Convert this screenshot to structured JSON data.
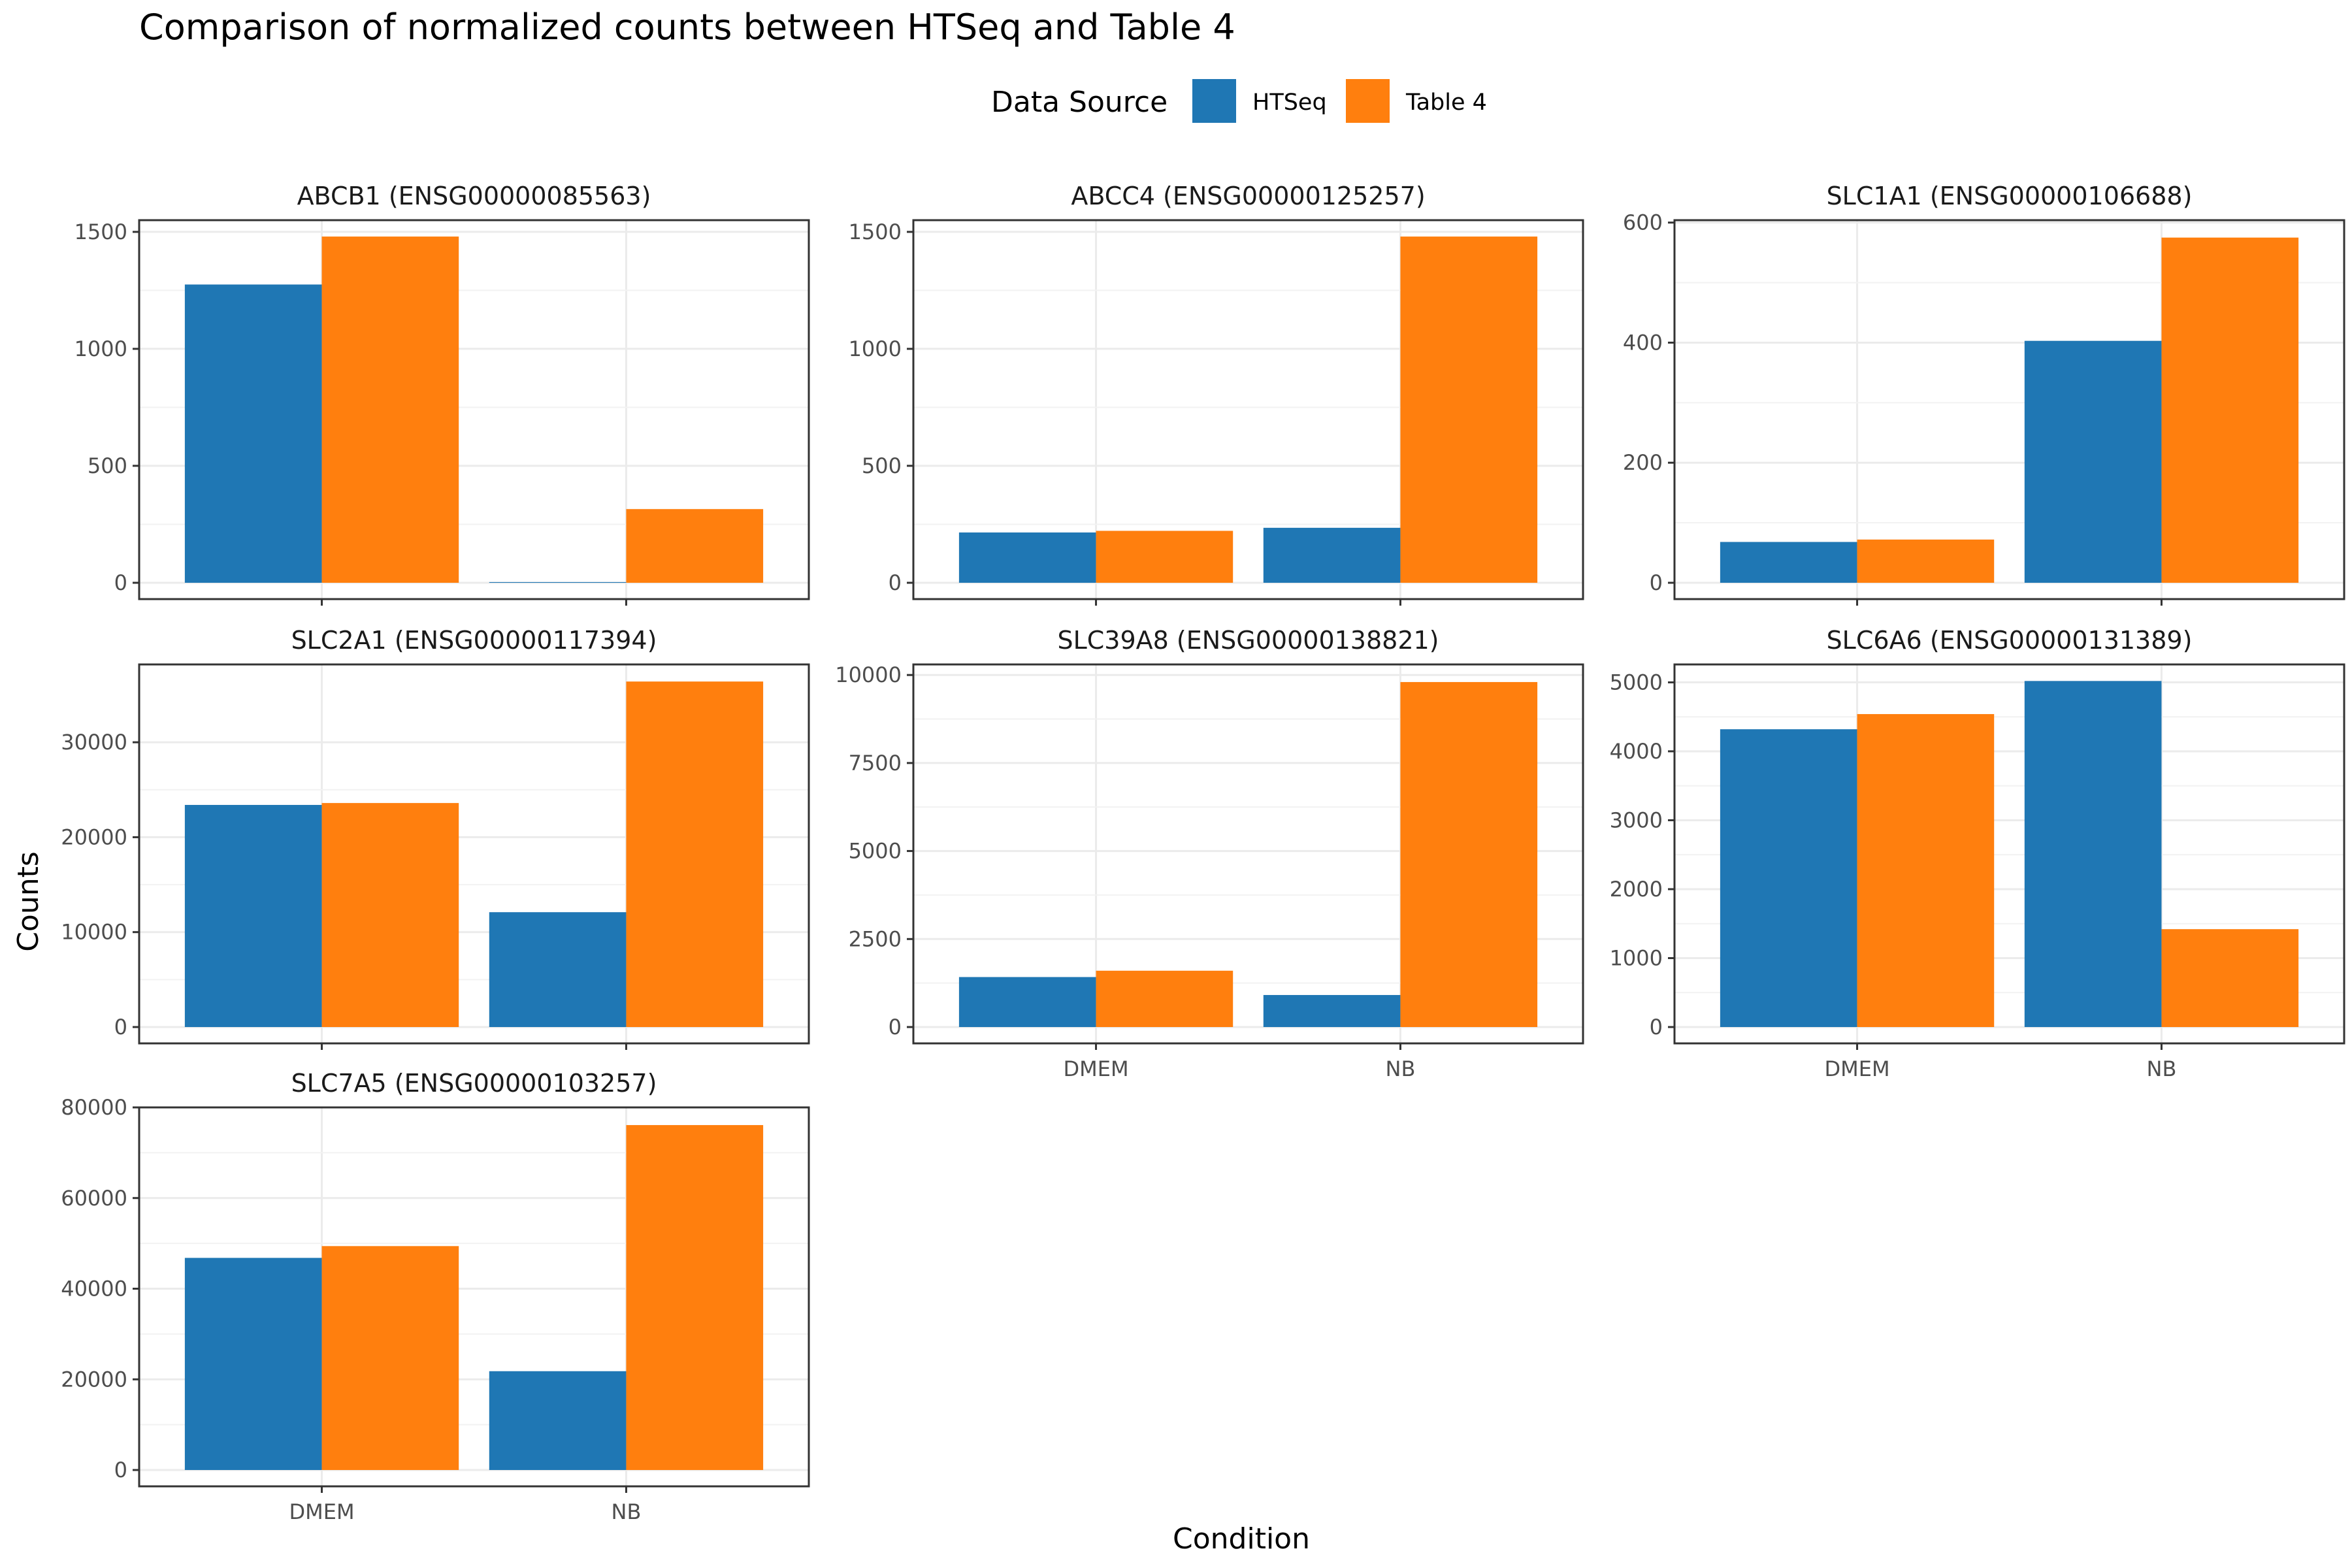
{
  "title": "Comparison of normalized counts between HTSeq and Table 4",
  "legend": {
    "title": "Data Source",
    "items": [
      {
        "label": "HTSeq",
        "color": "#1f77b4"
      },
      {
        "label": "Table 4",
        "color": "#ff7f0e"
      }
    ],
    "position": "top"
  },
  "axes": {
    "xlabel": "Condition",
    "ylabel": "Counts"
  },
  "chart_data": {
    "type": "bar",
    "layout": "facet-grid-3-columns",
    "categories": [
      "DMEM",
      "NB"
    ],
    "series_names": [
      "HTSeq",
      "Table 4"
    ],
    "series_colors": [
      "#1f77b4",
      "#ff7f0e"
    ],
    "grid": true,
    "facets": [
      {
        "title": "ABCB1 (ENSG00000085563)",
        "ylim": [
          0,
          1550
        ],
        "yticks": [
          0,
          500,
          1000,
          1500
        ],
        "ytick_labels": [
          "0",
          "500",
          "1000",
          "1500"
        ],
        "series": [
          {
            "name": "HTSeq",
            "values": [
              1275,
              3
            ]
          },
          {
            "name": "Table 4",
            "values": [
              1480,
              315
            ]
          }
        ],
        "show_x_labels": false
      },
      {
        "title": "ABCC4 (ENSG00000125257)",
        "ylim": [
          0,
          1550
        ],
        "yticks": [
          0,
          500,
          1000,
          1500
        ],
        "ytick_labels": [
          "0",
          "500",
          "1000",
          "1500"
        ],
        "series": [
          {
            "name": "HTSeq",
            "values": [
              215,
              235
            ]
          },
          {
            "name": "Table 4",
            "values": [
              222,
              1480
            ]
          }
        ],
        "show_x_labels": false
      },
      {
        "title": "SLC1A1 (ENSG00000106688)",
        "ylim": [
          0,
          604
        ],
        "yticks": [
          0,
          200,
          400,
          600
        ],
        "ytick_labels": [
          "0",
          "200",
          "400",
          "600"
        ],
        "series": [
          {
            "name": "HTSeq",
            "values": [
              68,
              403
            ]
          },
          {
            "name": "Table 4",
            "values": [
              72,
              575
            ]
          }
        ],
        "show_x_labels": false
      },
      {
        "title": "SLC2A1 (ENSG00000117394)",
        "ylim": [
          0,
          38200
        ],
        "yticks": [
          0,
          10000,
          20000,
          30000
        ],
        "ytick_labels": [
          "0",
          "10000",
          "20000",
          "30000"
        ],
        "series": [
          {
            "name": "HTSeq",
            "values": [
              23400,
              12100
            ]
          },
          {
            "name": "Table 4",
            "values": [
              23600,
              36400
            ]
          }
        ],
        "show_x_labels": false
      },
      {
        "title": "SLC39A8 (ENSG00000138821)",
        "ylim": [
          0,
          10300
        ],
        "yticks": [
          0,
          2500,
          5000,
          7500,
          10000
        ],
        "ytick_labels": [
          "0",
          "2500",
          "5000",
          "7500",
          "10000"
        ],
        "series": [
          {
            "name": "HTSeq",
            "values": [
              1420,
              910
            ]
          },
          {
            "name": "Table 4",
            "values": [
              1600,
              9800
            ]
          }
        ],
        "show_x_labels": true
      },
      {
        "title": "SLC6A6 (ENSG00000131389)",
        "ylim": [
          0,
          5260
        ],
        "yticks": [
          0,
          1000,
          2000,
          3000,
          4000,
          5000
        ],
        "ytick_labels": [
          "0",
          "1000",
          "2000",
          "3000",
          "4000",
          "5000"
        ],
        "series": [
          {
            "name": "HTSeq",
            "values": [
              4320,
              5020
            ]
          },
          {
            "name": "Table 4",
            "values": [
              4540,
              1420
            ]
          }
        ],
        "show_x_labels": true
      },
      {
        "title": "SLC7A5 (ENSG00000103257)",
        "ylim": [
          0,
          80000
        ],
        "yticks": [
          0,
          20000,
          40000,
          60000,
          80000
        ],
        "ytick_labels": [
          "0",
          "20000",
          "40000",
          "60000",
          "80000"
        ],
        "series": [
          {
            "name": "HTSeq",
            "values": [
              46800,
              21800
            ]
          },
          {
            "name": "Table 4",
            "values": [
              49400,
              76100
            ]
          }
        ],
        "show_x_labels": true
      }
    ]
  }
}
